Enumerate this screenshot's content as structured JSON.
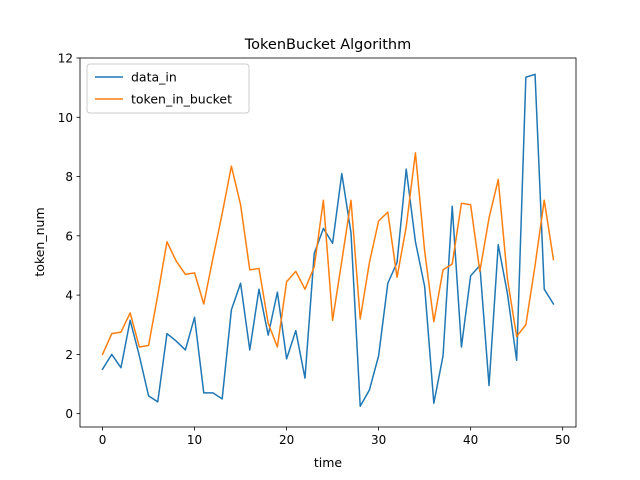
{
  "chart_data": {
    "type": "line",
    "title": "TokenBucket Algorithm",
    "xlabel": "time",
    "ylabel": "token_num",
    "xlim": [
      -2.45,
      51.45
    ],
    "ylim": [
      -0.45,
      12.0
    ],
    "x_ticks": [
      0,
      10,
      20,
      30,
      40,
      50
    ],
    "y_ticks": [
      0,
      2,
      4,
      6,
      8,
      10,
      12
    ],
    "grid": false,
    "legend_position": "top-left",
    "x": [
      0,
      1,
      2,
      3,
      4,
      5,
      6,
      7,
      8,
      9,
      10,
      11,
      12,
      13,
      14,
      15,
      16,
      17,
      18,
      19,
      20,
      21,
      22,
      23,
      24,
      25,
      26,
      27,
      28,
      29,
      30,
      31,
      32,
      33,
      34,
      35,
      36,
      37,
      38,
      39,
      40,
      41,
      42,
      43,
      44,
      45,
      46,
      47,
      48,
      49
    ],
    "series": [
      {
        "name": "data_in",
        "color": "#1f77b4",
        "values": [
          1.5,
          2.0,
          1.55,
          3.15,
          1.95,
          0.6,
          0.4,
          2.7,
          2.45,
          2.15,
          3.25,
          0.7,
          0.7,
          0.5,
          3.5,
          4.4,
          2.15,
          4.2,
          2.65,
          4.1,
          1.85,
          2.8,
          1.2,
          5.4,
          6.25,
          5.75,
          8.1,
          6.1,
          0.25,
          0.8,
          1.95,
          4.4,
          5.1,
          8.25,
          5.8,
          4.3,
          0.35,
          1.95,
          7.0,
          2.25,
          4.65,
          5.0,
          0.95,
          5.7,
          4.05,
          1.8,
          11.35,
          11.45,
          4.2,
          3.7
        ]
      },
      {
        "name": "token_in_bucket",
        "color": "#ff7f0e",
        "values": [
          2.0,
          2.7,
          2.75,
          3.4,
          2.25,
          2.3,
          4.0,
          5.8,
          5.15,
          4.7,
          4.75,
          3.7,
          5.25,
          6.75,
          8.35,
          7.05,
          4.85,
          4.9,
          3.05,
          2.25,
          4.45,
          4.8,
          4.2,
          4.95,
          7.2,
          3.15,
          5.15,
          7.2,
          3.2,
          5.1,
          6.5,
          6.8,
          4.6,
          6.3,
          8.8,
          5.5,
          3.1,
          4.85,
          5.05,
          7.1,
          7.05,
          4.8,
          6.6,
          7.9,
          4.55,
          2.6,
          3.0,
          5.0,
          7.2,
          5.2
        ]
      }
    ]
  }
}
